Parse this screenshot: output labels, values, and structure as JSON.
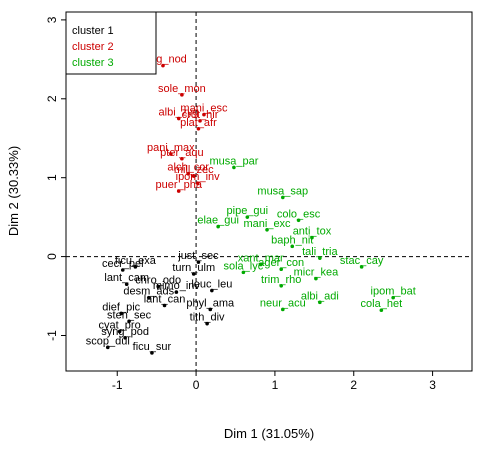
{
  "chart_data": {
    "type": "scatter",
    "xlabel": "Dim 1 (31.05%)",
    "ylabel": "Dim 2 (30.33%)",
    "xlim": [
      -1.65,
      3.5
    ],
    "ylim": [
      -1.45,
      3.1
    ],
    "x_ticks": [
      -1,
      0,
      1,
      2,
      3
    ],
    "y_ticks": [
      -1,
      0,
      1,
      2,
      3
    ],
    "reference_lines": {
      "x": 0,
      "y": 0
    },
    "grid": false,
    "legend_placement": "top-left",
    "series": [
      {
        "name": "cluster 1",
        "color": "#000000",
        "points": [
          {
            "label": "just_sec",
            "x": 0.03,
            "y": -0.07
          },
          {
            "label": "turn_ulm",
            "x": -0.03,
            "y": -0.22
          },
          {
            "label": "cecr_pel",
            "x": -0.93,
            "y": -0.17
          },
          {
            "label": "ficu_exa",
            "x": -0.77,
            "y": -0.13
          },
          {
            "label": "lant_cam",
            "x": -0.88,
            "y": -0.35
          },
          {
            "label": "chro_odo",
            "x": -0.48,
            "y": -0.38
          },
          {
            "label": "leuc_leu",
            "x": 0.2,
            "y": -0.43
          },
          {
            "label": "desm_ads",
            "x": -0.6,
            "y": -0.52
          },
          {
            "label": "mimo_inv",
            "x": -0.25,
            "y": -0.45
          },
          {
            "label": "phyl_ama",
            "x": 0.18,
            "y": -0.67
          },
          {
            "label": "dief_pic",
            "x": -0.95,
            "y": -0.72
          },
          {
            "label": "lant_can",
            "x": -0.4,
            "y": -0.62
          },
          {
            "label": "sten_sec",
            "x": -0.85,
            "y": -0.82
          },
          {
            "label": "tith_div",
            "x": 0.14,
            "y": -0.85
          },
          {
            "label": "cyat_pro",
            "x": -0.97,
            "y": -0.95
          },
          {
            "label": "syng_pod",
            "x": -0.9,
            "y": -1.03
          },
          {
            "label": "scop_dul",
            "x": -1.12,
            "y": -1.15
          },
          {
            "label": "ficu_sur",
            "x": -0.56,
            "y": -1.22
          }
        ]
      },
      {
        "name": "cluster 2",
        "color": "#cc0000",
        "points": [
          {
            "label": "syng_nod",
            "x": -0.42,
            "y": 2.42
          },
          {
            "label": "sole_mon",
            "x": -0.18,
            "y": 2.05
          },
          {
            "label": "mani_esc",
            "x": 0.1,
            "y": 1.8
          },
          {
            "label": "crot_hir",
            "x": 0.05,
            "y": 1.72
          },
          {
            "label": "albi_zyg",
            "x": -0.22,
            "y": 1.75
          },
          {
            "label": "plat_afr",
            "x": 0.03,
            "y": 1.62
          },
          {
            "label": "pani_max",
            "x": -0.32,
            "y": 1.3
          },
          {
            "label": "pter_aqu",
            "x": -0.18,
            "y": 1.24
          },
          {
            "label": "alch_cor",
            "x": -0.1,
            "y": 1.05
          },
          {
            "label": "mill_zec",
            "x": -0.03,
            "y": 1.02
          },
          {
            "label": "ipom_inv",
            "x": 0.02,
            "y": 0.93
          },
          {
            "label": "puer_pha",
            "x": -0.22,
            "y": 0.83
          }
        ]
      },
      {
        "name": "cluster 3",
        "color": "#00aa00",
        "points": [
          {
            "label": "musa_par",
            "x": 0.48,
            "y": 1.13
          },
          {
            "label": "musa_sap",
            "x": 1.1,
            "y": 0.75
          },
          {
            "label": "elae_gui",
            "x": 0.28,
            "y": 0.38
          },
          {
            "label": "pipe_gui",
            "x": 0.65,
            "y": 0.5
          },
          {
            "label": "colo_esc",
            "x": 1.3,
            "y": 0.46
          },
          {
            "label": "mani_exc",
            "x": 0.9,
            "y": 0.34
          },
          {
            "label": "anti_tox",
            "x": 1.47,
            "y": 0.24
          },
          {
            "label": "baph_nit",
            "x": 1.22,
            "y": 0.13
          },
          {
            "label": "tali_tria",
            "x": 1.57,
            "y": -0.02
          },
          {
            "label": "xant_mar",
            "x": 0.82,
            "y": -0.1
          },
          {
            "label": "ager_con",
            "x": 1.08,
            "y": -0.16
          },
          {
            "label": "stac_cay",
            "x": 2.1,
            "y": -0.13
          },
          {
            "label": "sola_lyc",
            "x": 0.6,
            "y": -0.2
          },
          {
            "label": "micr_kea",
            "x": 1.52,
            "y": -0.28
          },
          {
            "label": "trim_rho",
            "x": 1.08,
            "y": -0.37
          },
          {
            "label": "ipom_bat",
            "x": 2.5,
            "y": -0.52
          },
          {
            "label": "albi_adi",
            "x": 1.57,
            "y": -0.58
          },
          {
            "label": "neur_acu",
            "x": 1.1,
            "y": -0.67
          },
          {
            "label": "cola_het",
            "x": 2.35,
            "y": -0.68
          }
        ]
      }
    ]
  }
}
